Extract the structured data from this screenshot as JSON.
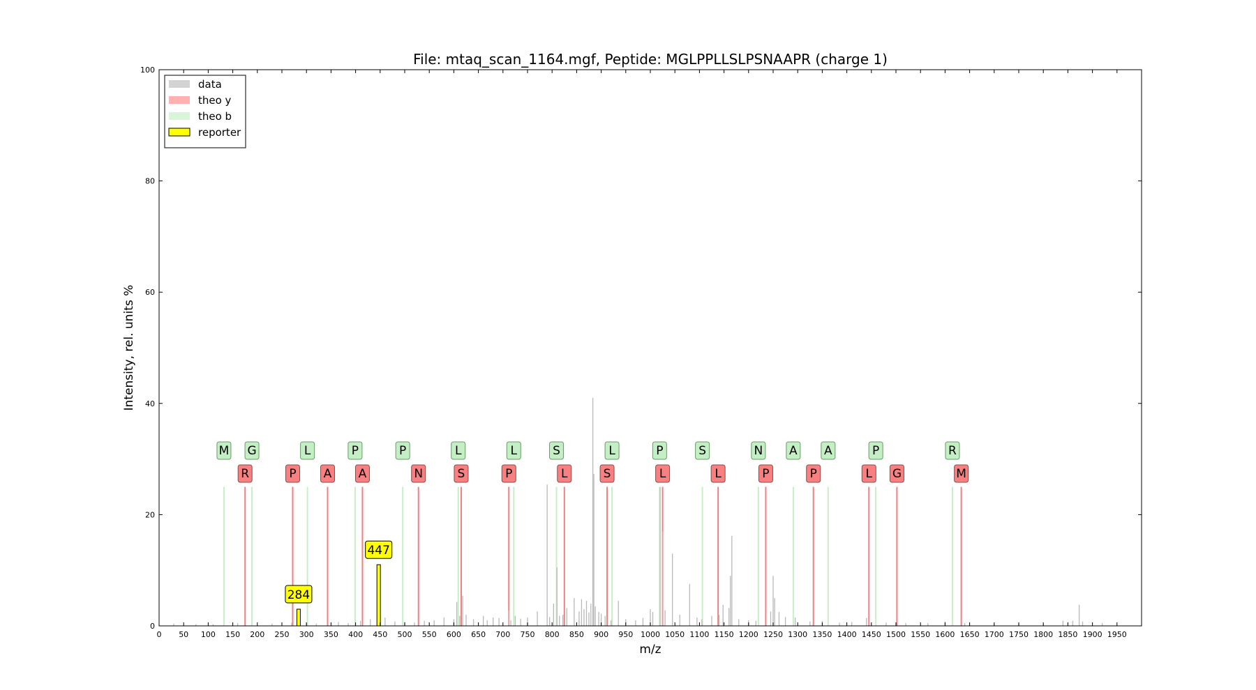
{
  "chart_data": {
    "type": "bar",
    "title": "File: mtaq_scan_1164.mgf, Peptide: MGLPPLLSLPSNAAPR (charge 1)",
    "xlabel": "m/z",
    "ylabel": "Intensity, rel. units %",
    "xlim": [
      0,
      2000
    ],
    "ylim": [
      0,
      100
    ],
    "xticks": [
      0,
      50,
      100,
      150,
      200,
      250,
      300,
      350,
      400,
      450,
      500,
      550,
      600,
      650,
      700,
      750,
      800,
      850,
      900,
      950,
      1000,
      1050,
      1100,
      1150,
      1200,
      1250,
      1300,
      1350,
      1400,
      1450,
      1500,
      1550,
      1600,
      1650,
      1700,
      1750,
      1800,
      1850,
      1900,
      1950
    ],
    "yticks": [
      0,
      20,
      40,
      60,
      80,
      100
    ],
    "grid": false,
    "legend": {
      "placement": "top-left",
      "entries": [
        {
          "label": "data",
          "color": "#d3d3d3"
        },
        {
          "label": "theo y",
          "color": "#ffb0b0"
        },
        {
          "label": "theo b",
          "color": "#d8f5d8"
        },
        {
          "label": "reporter",
          "color": "#ffff00"
        }
      ]
    },
    "colors": {
      "data": "#b8b8b8",
      "theo_y_line": "#f08080",
      "theo_y_label_bg": "#f88080",
      "theo_b_line": "#c8eec8",
      "theo_b_label_bg": "#c4efc4",
      "reporter": "#ffff00"
    },
    "theo_line_height": 25,
    "series": [
      {
        "name": "data",
        "peaks": [
          [
            30,
            0.4
          ],
          [
            75,
            0.3
          ],
          [
            110,
            0.3
          ],
          [
            160,
            0.5
          ],
          [
            230,
            0.4
          ],
          [
            270,
            0.6
          ],
          [
            300,
            0.5
          ],
          [
            320,
            0.4
          ],
          [
            365,
            0.7
          ],
          [
            385,
            0.5
          ],
          [
            410,
            0.9
          ],
          [
            430,
            1.2
          ],
          [
            445,
            3.0
          ],
          [
            460,
            1.5
          ],
          [
            480,
            0.8
          ],
          [
            500,
            0.7
          ],
          [
            520,
            0.6
          ],
          [
            540,
            0.9
          ],
          [
            560,
            1.0
          ],
          [
            580,
            1.5
          ],
          [
            600,
            1.2
          ],
          [
            606,
            4.3
          ],
          [
            612,
            1.8
          ],
          [
            618,
            5.4
          ],
          [
            625,
            2.0
          ],
          [
            640,
            1.2
          ],
          [
            660,
            1.8
          ],
          [
            668,
            1.0
          ],
          [
            680,
            1.5
          ],
          [
            692,
            1.4
          ],
          [
            712,
            2.7
          ],
          [
            716,
            1.0
          ],
          [
            725,
            1.8
          ],
          [
            736,
            1.3
          ],
          [
            750,
            1.5
          ],
          [
            770,
            2.6
          ],
          [
            790,
            25.4
          ],
          [
            795,
            1.6
          ],
          [
            803,
            4.0
          ],
          [
            810,
            10.5
          ],
          [
            815,
            1.8
          ],
          [
            822,
            2.0
          ],
          [
            830,
            3.2
          ],
          [
            845,
            5.0
          ],
          [
            855,
            2.6
          ],
          [
            860,
            4.8
          ],
          [
            865,
            3.0
          ],
          [
            870,
            4.5
          ],
          [
            875,
            2.4
          ],
          [
            879,
            4.0
          ],
          [
            883,
            41.0
          ],
          [
            885,
            27.3
          ],
          [
            888,
            3.5
          ],
          [
            895,
            2.5
          ],
          [
            900,
            2.2
          ],
          [
            908,
            1.8
          ],
          [
            920,
            1.0
          ],
          [
            935,
            4.5
          ],
          [
            950,
            1.2
          ],
          [
            970,
            1.0
          ],
          [
            985,
            1.4
          ],
          [
            1000,
            3.0
          ],
          [
            1005,
            2.5
          ],
          [
            1020,
            25.0
          ],
          [
            1025,
            17.0
          ],
          [
            1030,
            2.8
          ],
          [
            1045,
            13.0
          ],
          [
            1060,
            2.0
          ],
          [
            1080,
            7.5
          ],
          [
            1095,
            1.5
          ],
          [
            1105,
            1.2
          ],
          [
            1125,
            1.8
          ],
          [
            1140,
            2.0
          ],
          [
            1148,
            3.8
          ],
          [
            1160,
            3.2
          ],
          [
            1163,
            9.0
          ],
          [
            1166,
            16.2
          ],
          [
            1180,
            1.2
          ],
          [
            1200,
            1.0
          ],
          [
            1215,
            0.9
          ],
          [
            1245,
            2.6
          ],
          [
            1250,
            9.0
          ],
          [
            1253,
            5.0
          ],
          [
            1262,
            2.5
          ],
          [
            1275,
            1.6
          ],
          [
            1295,
            1.5
          ],
          [
            1325,
            0.8
          ],
          [
            1350,
            0.9
          ],
          [
            1385,
            0.6
          ],
          [
            1410,
            0.7
          ],
          [
            1440,
            1.4
          ],
          [
            1480,
            0.6
          ],
          [
            1520,
            0.5
          ],
          [
            1565,
            0.5
          ],
          [
            1600,
            0.8
          ],
          [
            1640,
            0.5
          ],
          [
            1700,
            0.4
          ],
          [
            1750,
            0.5
          ],
          [
            1800,
            0.4
          ],
          [
            1840,
            0.9
          ],
          [
            1860,
            0.9
          ],
          [
            1873,
            3.8
          ],
          [
            1880,
            0.8
          ],
          [
            1920,
            0.5
          ]
        ]
      },
      {
        "name": "theo b",
        "ions": [
          {
            "label": "M",
            "mz": 132
          },
          {
            "label": "G",
            "mz": 189
          },
          {
            "label": "L",
            "mz": 302
          },
          {
            "label": "P",
            "mz": 399
          },
          {
            "label": "P",
            "mz": 496
          },
          {
            "label": "L",
            "mz": 609
          },
          {
            "label": "L",
            "mz": 722
          },
          {
            "label": "S",
            "mz": 809
          },
          {
            "label": "L",
            "mz": 922
          },
          {
            "label": "P",
            "mz": 1019
          },
          {
            "label": "S",
            "mz": 1106
          },
          {
            "label": "N",
            "mz": 1220
          },
          {
            "label": "A",
            "mz": 1291
          },
          {
            "label": "A",
            "mz": 1362
          },
          {
            "label": "P",
            "mz": 1459
          },
          {
            "label": "R",
            "mz": 1615
          }
        ]
      },
      {
        "name": "theo y",
        "ions": [
          {
            "label": "R",
            "mz": 175
          },
          {
            "label": "P",
            "mz": 272
          },
          {
            "label": "A",
            "mz": 343
          },
          {
            "label": "A",
            "mz": 414
          },
          {
            "label": "N",
            "mz": 528
          },
          {
            "label": "S",
            "mz": 615
          },
          {
            "label": "P",
            "mz": 712
          },
          {
            "label": "L",
            "mz": 825
          },
          {
            "label": "S",
            "mz": 912
          },
          {
            "label": "L",
            "mz": 1025
          },
          {
            "label": "L",
            "mz": 1138
          },
          {
            "label": "P",
            "mz": 1235
          },
          {
            "label": "P",
            "mz": 1332
          },
          {
            "label": "L",
            "mz": 1445
          },
          {
            "label": "G",
            "mz": 1502
          },
          {
            "label": "M",
            "mz": 1633
          }
        ]
      },
      {
        "name": "reporter",
        "peaks": [
          {
            "label": "284",
            "mz": 284,
            "intensity": 3.0
          },
          {
            "label": "447",
            "mz": 447,
            "intensity": 11.0
          }
        ]
      }
    ]
  }
}
